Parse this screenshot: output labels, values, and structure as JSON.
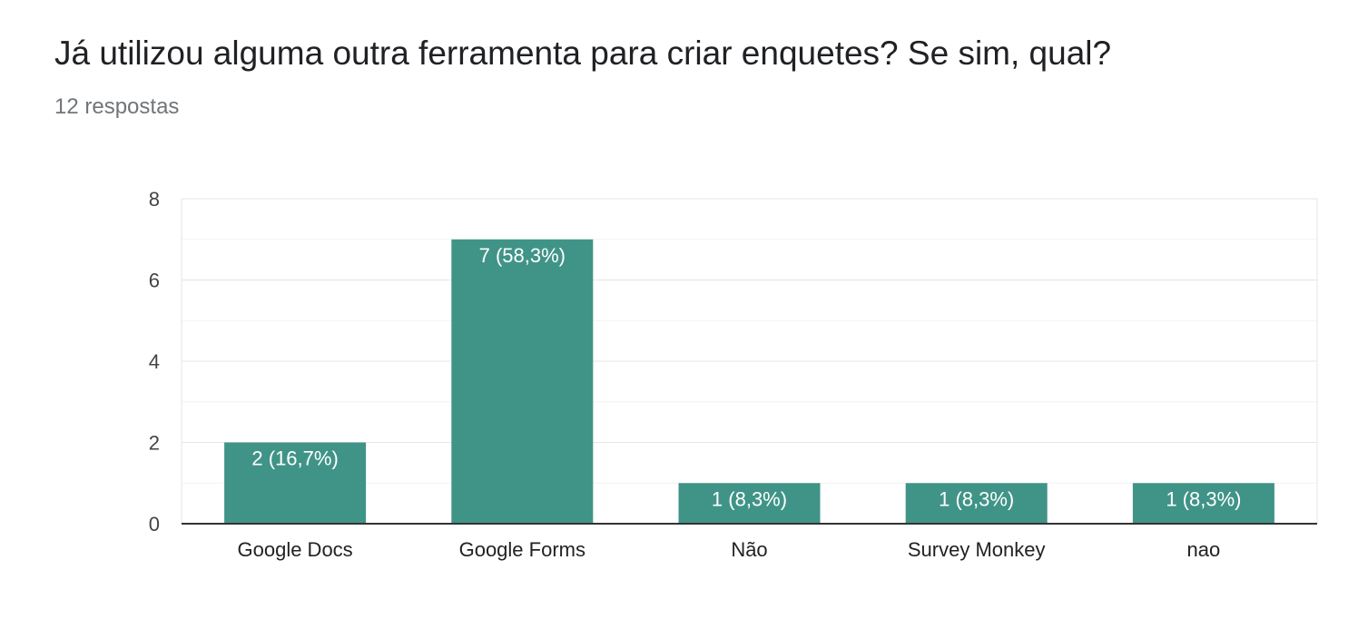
{
  "question": {
    "title": "Já utilizou alguma outra ferramenta para criar enquetes? Se sim, qual?",
    "responses": "12 respostas"
  },
  "colors": {
    "bar": "#409487",
    "grid": "#e6e6e6",
    "minor_grid": "#f2f2f2",
    "axis": "#333333"
  },
  "chart_data": {
    "type": "bar",
    "title": "Já utilizou alguma outra ferramenta para criar enquetes? Se sim, qual?",
    "categories": [
      "Google Docs",
      "Google Forms",
      "Não",
      "Survey Monkey",
      "nao"
    ],
    "values": [
      2,
      7,
      1,
      1,
      1
    ],
    "data_labels": [
      "2 (16,7%)",
      "7 (58,3%)",
      "1 (8,3%)",
      "1 (8,3%)",
      "1 (8,3%)"
    ],
    "yticks": [
      0,
      2,
      4,
      6,
      8
    ],
    "ylim": [
      0,
      8
    ],
    "xlabel": "",
    "ylabel": "",
    "grid": true,
    "legend": "none"
  }
}
